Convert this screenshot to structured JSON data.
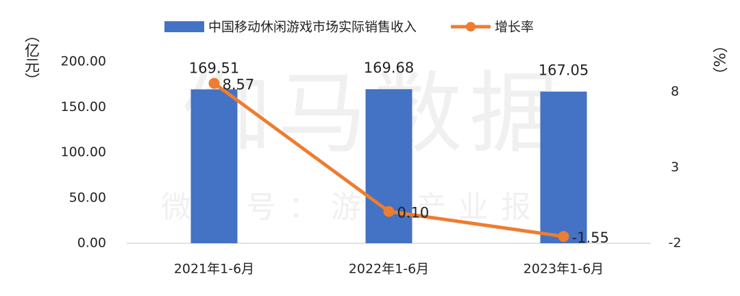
{
  "chart_data": {
    "type": "bar_line",
    "watermark": "伽马数据",
    "watermark_sub": "微信号：游戏产业报告",
    "y_label": "（亿元）",
    "y2_label": "（%）",
    "categories": [
      "2021年1-6月",
      "2022年1-6月",
      "2023年1-6月"
    ],
    "series": [
      {
        "name": "中国移动休闲游戏市场实际销售收入",
        "type": "bar",
        "color": "#4472c4",
        "values": [
          169.51,
          169.68,
          167.05
        ]
      },
      {
        "name": "增长率",
        "type": "line",
        "axis": "y2",
        "color": "#ed7d31",
        "values": [
          8.57,
          0.1,
          -1.55
        ],
        "value_labels": [
          "8.57",
          "0.10",
          "-1.55"
        ]
      }
    ],
    "ylim": [
      0,
      200
    ],
    "yticks": [
      {
        "value": 0,
        "label": "0.00"
      },
      {
        "value": 50,
        "label": "50.00"
      },
      {
        "value": 100,
        "label": "100.00"
      },
      {
        "value": 150,
        "label": "150.00"
      },
      {
        "value": 200,
        "label": "200.00"
      }
    ],
    "y2lim": [
      -2,
      10
    ],
    "y2ticks": [
      -2,
      3,
      8
    ],
    "grid": false,
    "legend": "top"
  }
}
